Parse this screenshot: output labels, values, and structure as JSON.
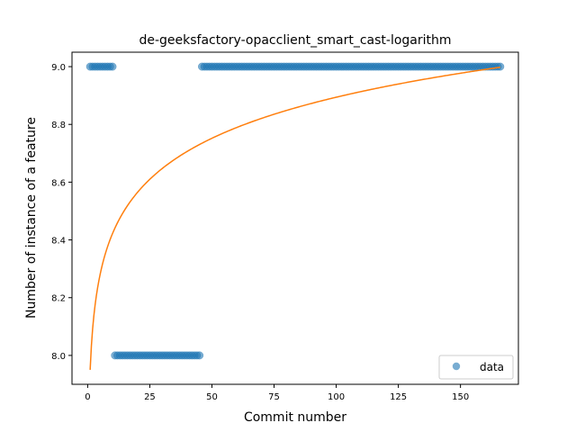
{
  "chart_data": {
    "type": "scatter",
    "title": "de-geeksfactory-opacclient_smart_cast-logarithm",
    "xlabel": "Commit number",
    "ylabel": "Number of instance of a feature",
    "xlim": [
      -6.3,
      173.3
    ],
    "ylim": [
      7.9,
      9.05
    ],
    "xticks": [
      0,
      25,
      50,
      75,
      100,
      125,
      150
    ],
    "yticks": [
      8.0,
      8.2,
      8.4,
      8.6,
      8.8,
      9.0
    ],
    "ytick_labels": [
      "8.0",
      "8.2",
      "8.4",
      "8.6",
      "8.8",
      "9.0"
    ],
    "legend_position": "lower-right",
    "grid": false,
    "series": [
      {
        "name": "data",
        "kind": "scatter",
        "color": "#1f77b4",
        "segments": [
          {
            "x_start": 1,
            "x_end": 10,
            "y": 9
          },
          {
            "x_start": 11,
            "x_end": 45,
            "y": 8
          },
          {
            "x_start": 46,
            "x_end": 166,
            "y": 9
          }
        ]
      },
      {
        "kind": "line",
        "color": "#ff7f0e",
        "function": "logarithmic fit",
        "a": 7.95,
        "b": 0.205,
        "x_range": [
          1,
          166
        ]
      }
    ]
  }
}
